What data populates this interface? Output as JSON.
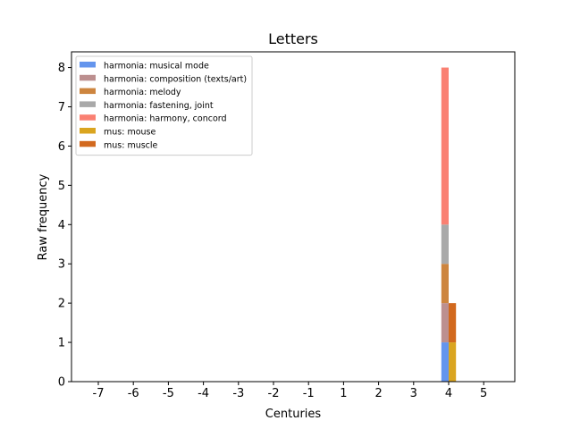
{
  "chart_data": {
    "type": "bar",
    "stacked": true,
    "title": "Letters",
    "xlabel": "Centuries",
    "ylabel": "Raw frequency",
    "x_ticks": [
      "-7",
      "-6",
      "-5",
      "-4",
      "-3",
      "-2",
      "-1",
      "1",
      "2",
      "3",
      "4",
      "5"
    ],
    "y_ticks": [
      "0",
      "1",
      "2",
      "3",
      "4",
      "5",
      "6",
      "7",
      "8"
    ],
    "ylim": [
      0,
      8.4
    ],
    "grid": false,
    "legend_position": "top-left",
    "series": [
      {
        "name": "harmonia: musical mode",
        "color": "#6495ed",
        "points": [
          {
            "x": "4",
            "y": 1
          }
        ]
      },
      {
        "name": "harmonia: composition (texts/art)",
        "color": "#bc8f8f",
        "points": [
          {
            "x": "4",
            "y": 1
          }
        ]
      },
      {
        "name": "harmonia: melody",
        "color": "#cd853f",
        "points": [
          {
            "x": "4",
            "y": 1
          }
        ]
      },
      {
        "name": "harmonia: fastening, joint",
        "color": "#a9a9a9",
        "points": [
          {
            "x": "4",
            "y": 1
          }
        ]
      },
      {
        "name": "harmonia: harmony, concord",
        "color": "#fa8072",
        "points": [
          {
            "x": "4",
            "y": 4
          }
        ]
      },
      {
        "name": "mus: mouse",
        "color": "#daa520",
        "points": [
          {
            "x": "4",
            "y": 1
          }
        ]
      },
      {
        "name": "mus: muscle",
        "color": "#d2691e",
        "points": [
          {
            "x": "4",
            "y": 1
          }
        ]
      }
    ],
    "bar_groups": [
      {
        "label": "harmonia",
        "series": [
          0,
          1,
          2,
          3,
          4
        ]
      },
      {
        "label": "mus",
        "series": [
          5,
          6
        ]
      }
    ]
  }
}
